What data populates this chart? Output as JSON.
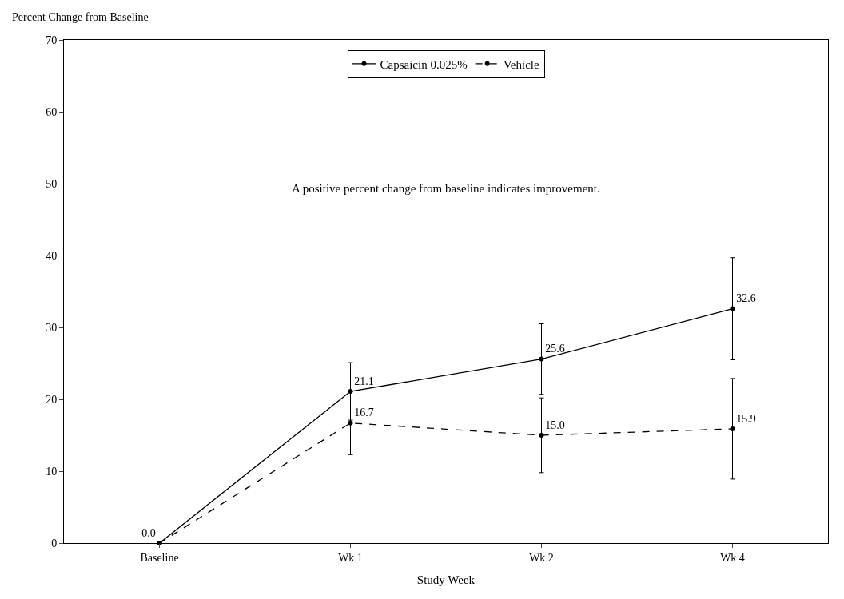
{
  "chart_data": {
    "type": "line",
    "ylabel": "Percent Change from Baseline",
    "xlabel": "Study Week",
    "categories": [
      "Baseline",
      "Wk 1",
      "Wk 2",
      "Wk 4"
    ],
    "ylim": [
      0,
      70
    ],
    "yticks": [
      0,
      10,
      20,
      30,
      40,
      50,
      60,
      70
    ],
    "series": [
      {
        "name": "Capsaicin 0.025%",
        "color": "#000000",
        "line_style": "solid",
        "values": [
          0.0,
          21.1,
          25.6,
          32.6
        ],
        "errors": [
          null,
          4.0,
          4.9,
          7.1
        ],
        "value_labels": [
          "0.0",
          "21.1",
          "25.6",
          "32.6"
        ]
      },
      {
        "name": "Vehicle",
        "color": "#000000",
        "line_style": "dashed",
        "values": [
          0.0,
          16.7,
          15.0,
          15.9
        ],
        "errors": [
          null,
          4.4,
          5.2,
          7.0
        ],
        "value_labels": [
          null,
          "16.7",
          "15.0",
          "15.9"
        ]
      }
    ],
    "marker": "circle",
    "legend": "top",
    "annotations": [
      "A positive percent change from baseline indicates improvement."
    ]
  }
}
